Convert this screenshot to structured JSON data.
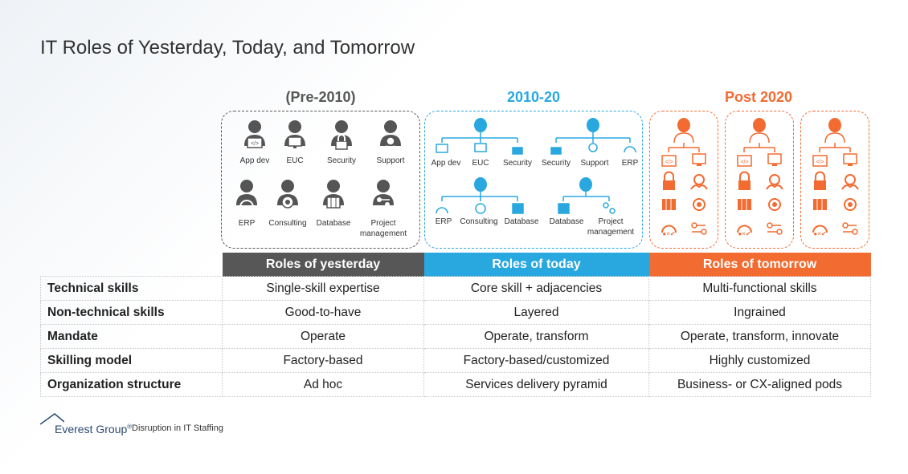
{
  "title": "IT Roles of Yesterday, Today, and Tomorrow",
  "colors": {
    "gray": "#575757",
    "blue": "#29a8e0",
    "orange": "#f26b31",
    "icon_dark": "#555555"
  },
  "eras": [
    {
      "label": "(Pre-2010)",
      "color": "#575757"
    },
    {
      "label": "2010-20",
      "color": "#29a8e0"
    },
    {
      "label": "Post 2020",
      "color": "#f26b31"
    }
  ],
  "yesterday_roles": [
    "App dev",
    "EUC",
    "Security",
    "Support",
    "ERP",
    "Consulting",
    "Database",
    "Project",
    "management"
  ],
  "today_roles": [
    "App dev",
    "EUC",
    "Security",
    "Security",
    "Support",
    "ERP",
    "ERP",
    "Consulting",
    "Database",
    "Database",
    "Project",
    "management"
  ],
  "table": {
    "headers": [
      "Roles of yesterday",
      "Roles of today",
      "Roles of tomorrow"
    ],
    "rows": [
      {
        "label": "Technical skills",
        "values": [
          "Single-skill expertise",
          "Core skill + adjacencies",
          "Multi-functional skills"
        ]
      },
      {
        "label": "Non-technical skills",
        "values": [
          "Good-to-have",
          "Layered",
          "Ingrained"
        ]
      },
      {
        "label": "Mandate",
        "values": [
          "Operate",
          "Operate, transform",
          "Operate, transform, innovate"
        ]
      },
      {
        "label": "Skilling model",
        "values": [
          "Factory-based",
          "Factory-based/customized",
          "Highly customized"
        ]
      },
      {
        "label": "Organization structure",
        "values": [
          "Ad hoc",
          "Services delivery pyramid",
          "Business- or CX-aligned pods"
        ]
      }
    ]
  },
  "footer": {
    "brand": "Everest Group",
    "registered": "®",
    "subtitle": "Disruption in IT Staffing"
  }
}
